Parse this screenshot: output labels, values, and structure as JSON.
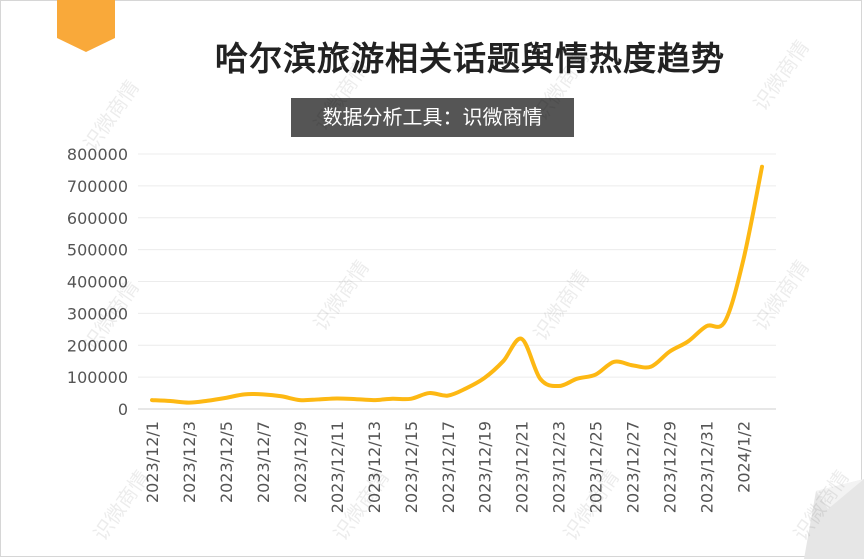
{
  "title": "哈尔滨旅游相关话题舆情热度趋势",
  "subtitle": "数据分析工具：识微商情",
  "watermark": "识微商情",
  "colors": {
    "line": "#FDB813",
    "tab": "#F9A93A",
    "subtitle_bg": "#555555"
  },
  "chart_data": {
    "type": "line",
    "title": "哈尔滨旅游相关话题舆情热度趋势",
    "xlabel": "",
    "ylabel": "",
    "ylim": [
      0,
      800000
    ],
    "yticks": [
      "800000",
      "700000",
      "600000",
      "500000",
      "400000",
      "300000",
      "200000",
      "100000",
      "0"
    ],
    "xtick_labels": [
      "2023/12/1",
      "2023/12/3",
      "2023/12/5",
      "2023/12/7",
      "2023/12/9",
      "2023/12/11",
      "2023/12/13",
      "2023/12/15",
      "2023/12/17",
      "2023/12/19",
      "2023/12/21",
      "2023/12/23",
      "2023/12/25",
      "2023/12/27",
      "2023/12/29",
      "2023/12/31",
      "2024/1/2"
    ],
    "x": [
      "2023/12/1",
      "2023/12/2",
      "2023/12/3",
      "2023/12/4",
      "2023/12/5",
      "2023/12/6",
      "2023/12/7",
      "2023/12/8",
      "2023/12/9",
      "2023/12/10",
      "2023/12/11",
      "2023/12/12",
      "2023/12/13",
      "2023/12/14",
      "2023/12/15",
      "2023/12/16",
      "2023/12/17",
      "2023/12/18",
      "2023/12/19",
      "2023/12/20",
      "2023/12/21",
      "2023/12/22",
      "2023/12/23",
      "2023/12/24",
      "2023/12/25",
      "2023/12/26",
      "2023/12/27",
      "2023/12/28",
      "2023/12/29",
      "2023/12/30",
      "2023/12/31",
      "2024/1/1",
      "2024/1/2",
      "2024/1/3"
    ],
    "series": [
      {
        "values": [
          28000,
          25000,
          20000,
          26000,
          35000,
          46000,
          46000,
          40000,
          28000,
          30000,
          33000,
          31000,
          28000,
          32000,
          32000,
          50000,
          42000,
          65000,
          98000,
          150000,
          220000,
          95000,
          72000,
          95000,
          108000,
          148000,
          137000,
          133000,
          180000,
          212000,
          260000,
          275000,
          470000,
          760000
        ]
      }
    ],
    "grid": true,
    "legend": "none"
  }
}
